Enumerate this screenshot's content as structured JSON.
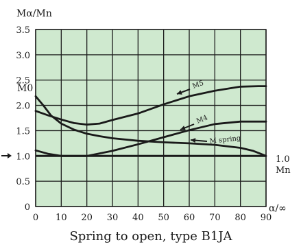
{
  "chart_data": {
    "type": "line",
    "title": "Spring to open, type B1JA",
    "ylabel": "Mα/Mn",
    "xlabel": "α/∞",
    "xlim": [
      0,
      90
    ],
    "ylim": [
      0,
      3.5
    ],
    "x_ticks": [
      "0",
      "10",
      "20",
      "30",
      "40",
      "50",
      "60",
      "70",
      "80",
      "90"
    ],
    "y_ticks": [
      "0",
      "0.5",
      "1.0",
      "1.5",
      "2.0",
      "2.5",
      "3.0",
      "3.5"
    ],
    "grid": true,
    "background_color": "#cfe9cf",
    "line_color": "#1a1a1a",
    "annotations": {
      "m0": "M0",
      "right_top": "1.0",
      "right_bottom": "Mn"
    },
    "series": [
      {
        "name": "M5",
        "x": [
          0,
          5,
          10,
          15,
          20,
          25,
          30,
          40,
          50,
          60,
          70,
          80,
          87,
          90
        ],
        "y": [
          1.89,
          1.8,
          1.72,
          1.65,
          1.62,
          1.64,
          1.71,
          1.84,
          2.02,
          2.18,
          2.29,
          2.37,
          2.38,
          2.38
        ]
      },
      {
        "name": "M4",
        "x": [
          0,
          5,
          10,
          20,
          30,
          40,
          50,
          60,
          70,
          80,
          90
        ],
        "y": [
          1.11,
          1.04,
          1.0,
          1.0,
          1.1,
          1.23,
          1.37,
          1.51,
          1.63,
          1.68,
          1.68
        ]
      },
      {
        "name": "M spring",
        "x": [
          0,
          3,
          6,
          10,
          15,
          20,
          25,
          30,
          40,
          50,
          60,
          70,
          80,
          85,
          90
        ],
        "y": [
          2.18,
          2.0,
          1.8,
          1.64,
          1.52,
          1.44,
          1.39,
          1.35,
          1.3,
          1.27,
          1.25,
          1.22,
          1.16,
          1.1,
          1.0
        ]
      }
    ],
    "reference_line": {
      "y": 1.0
    }
  }
}
